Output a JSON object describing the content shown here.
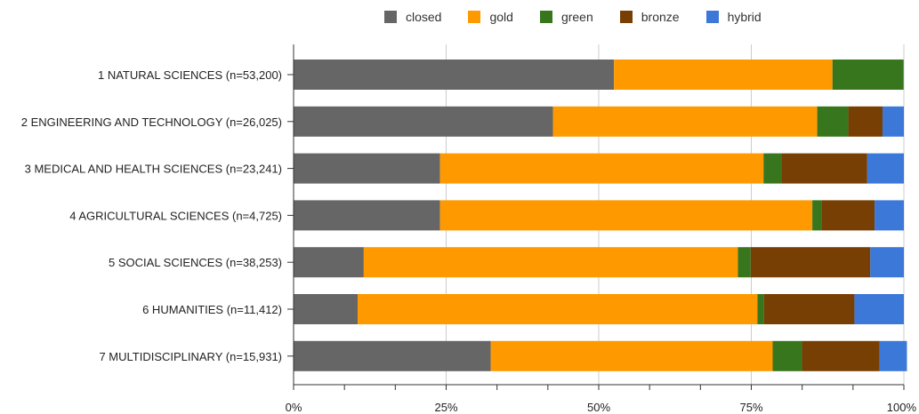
{
  "chart_data": {
    "type": "bar",
    "orientation": "horizontal",
    "stacked": true,
    "categories": [
      "1 NATURAL SCIENCES (n=53,200)",
      "2 ENGINEERING AND TECHNOLOGY (n=26,025)",
      "3 MEDICAL AND HEALTH SCIENCES (n=23,241)",
      "4 AGRICULTURAL SCIENCES (n=4,725)",
      "5 SOCIAL SCIENCES (n=38,253)",
      "6 HUMANITIES (n=11,412)",
      "7 MULTIDISCIPLINARY (n=15,931)"
    ],
    "series": [
      {
        "name": "closed",
        "color": "#666666",
        "values": [
          52.5,
          42.5,
          24.0,
          24.0,
          11.5,
          10.5,
          32.3
        ]
      },
      {
        "name": "gold",
        "color": "#ff9900",
        "values": [
          35.8,
          43.3,
          53.0,
          61.0,
          61.3,
          65.5,
          46.2
        ]
      },
      {
        "name": "green",
        "color": "#38761d",
        "values": [
          11.6,
          5.1,
          2.9,
          1.5,
          2.1,
          1.1,
          4.8
        ]
      },
      {
        "name": "bronze",
        "color": "#783f04",
        "values": [
          0.0,
          5.6,
          14.1,
          8.7,
          19.6,
          14.8,
          12.7
        ]
      },
      {
        "name": "hybrid",
        "color": "#3c78d8",
        "values": [
          0.1,
          3.5,
          6.0,
          4.8,
          5.5,
          8.1,
          4.5
        ]
      }
    ],
    "xticks": [
      "0%",
      "25%",
      "50%",
      "75%",
      "100%"
    ],
    "xlim": [
      0,
      100
    ],
    "xlabel": "",
    "ylabel": "",
    "grid": true,
    "legend": "top"
  }
}
